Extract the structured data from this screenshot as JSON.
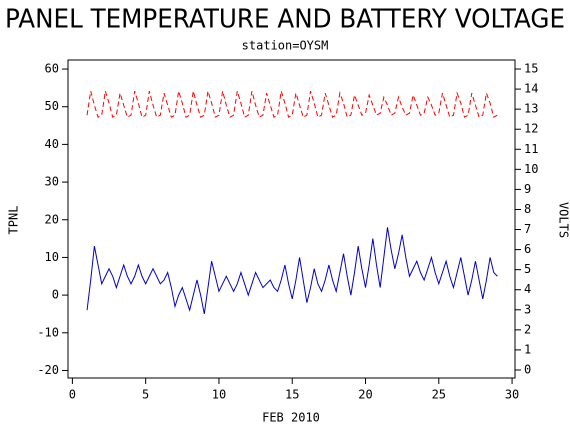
{
  "chart_data": {
    "type": "line",
    "title": "PANEL TEMPERATURE AND BATTERY VOLTAGE",
    "subtitle": "station=OYSM",
    "x_label": "FEB 2010",
    "y_label": "TPNL",
    "y2_label": "VOLTS",
    "xlim": [
      -0.3,
      30.2
    ],
    "xticks": [
      0,
      5,
      10,
      15,
      20,
      25,
      30
    ],
    "ylim": [
      -22,
      62.4
    ],
    "yticks": [
      -20,
      -10,
      0,
      10,
      20,
      30,
      40,
      50,
      60
    ],
    "y2lim": [
      -0.4,
      15.45
    ],
    "y2ticks": [
      0,
      1,
      2,
      3,
      4,
      5,
      6,
      7,
      8,
      9,
      10,
      11,
      12,
      13,
      14,
      15
    ],
    "x": [
      1,
      1.25,
      1.5,
      1.75,
      2,
      2.25,
      2.5,
      2.75,
      3,
      3.25,
      3.5,
      3.75,
      4,
      4.25,
      4.5,
      4.75,
      5,
      5.25,
      5.5,
      5.75,
      6,
      6.25,
      6.5,
      6.75,
      7,
      7.25,
      7.5,
      7.75,
      8,
      8.25,
      8.5,
      8.75,
      9,
      9.25,
      9.5,
      9.75,
      10,
      10.25,
      10.5,
      10.75,
      11,
      11.25,
      11.5,
      11.75,
      12,
      12.25,
      12.5,
      12.75,
      13,
      13.25,
      13.5,
      13.75,
      14,
      14.25,
      14.5,
      14.75,
      15,
      15.25,
      15.5,
      15.75,
      16,
      16.25,
      16.5,
      16.75,
      17,
      17.25,
      17.5,
      17.75,
      18,
      18.25,
      18.5,
      18.75,
      19,
      19.25,
      19.5,
      19.75,
      20,
      20.25,
      20.5,
      20.75,
      21,
      21.25,
      21.5,
      21.75,
      22,
      22.25,
      22.5,
      22.75,
      23,
      23.25,
      23.5,
      23.75,
      24,
      24.25,
      24.5,
      24.75,
      25,
      25.25,
      25.5,
      25.75,
      26,
      26.25,
      26.5,
      26.75,
      27,
      27.25,
      27.5,
      27.75,
      28,
      28.25,
      28.5,
      28.75,
      29
    ],
    "series": [
      {
        "color": "#0000cc",
        "linestyle": "solid",
        "values": [
          -4,
          4,
          13,
          8,
          3,
          5,
          7,
          5,
          2,
          5,
          8,
          5,
          3,
          5,
          8,
          5,
          3,
          5,
          7,
          5,
          3,
          4,
          6,
          2,
          -3,
          0,
          2,
          -1,
          -4,
          0,
          4,
          0,
          -5,
          2,
          9,
          5,
          1,
          3,
          5,
          3,
          1,
          3,
          6,
          3,
          0,
          3,
          6,
          4,
          2,
          3,
          4,
          2,
          1,
          4,
          8,
          3,
          -1,
          4,
          10,
          4,
          -2,
          2,
          7,
          3,
          1,
          4,
          8,
          4,
          1,
          6,
          11,
          5,
          0,
          6,
          13,
          7,
          2,
          8,
          15,
          8,
          2,
          10,
          18,
          12,
          7,
          11,
          16,
          10,
          5,
          7,
          9,
          6,
          4,
          7,
          10,
          6,
          3,
          6,
          9,
          5,
          2,
          6,
          10,
          5,
          0,
          4,
          9,
          4,
          -1,
          4,
          10,
          6,
          5
        ]
      },
      {
        "color": "#ff0000",
        "linestyle": "dashed",
        "axis": "y2",
        "values": [
          12.7,
          13.9,
          13.2,
          12.6,
          12.7,
          13.9,
          13.3,
          12.6,
          12.7,
          13.8,
          13.2,
          12.6,
          12.7,
          13.9,
          13.3,
          12.6,
          12.7,
          13.9,
          13.2,
          12.6,
          12.7,
          13.8,
          13.2,
          12.6,
          12.7,
          13.9,
          13.3,
          12.6,
          12.7,
          13.9,
          13.2,
          12.6,
          12.7,
          13.9,
          13.3,
          12.6,
          12.7,
          13.9,
          13.2,
          12.6,
          12.7,
          13.9,
          13.3,
          12.6,
          12.7,
          13.9,
          13.2,
          12.6,
          12.7,
          13.8,
          13.2,
          12.6,
          12.7,
          13.9,
          13.3,
          12.6,
          12.7,
          13.8,
          13.2,
          12.6,
          12.7,
          13.9,
          13.3,
          12.6,
          12.7,
          13.8,
          13.2,
          12.6,
          12.7,
          13.8,
          13.3,
          12.6,
          12.7,
          13.7,
          13.2,
          12.7,
          12.8,
          13.7,
          13.2,
          12.7,
          12.8,
          13.6,
          13.2,
          12.7,
          12.8,
          13.6,
          13.1,
          12.7,
          12.8,
          13.7,
          13.2,
          12.7,
          12.8,
          13.6,
          13.2,
          12.7,
          12.8,
          13.8,
          13.2,
          12.6,
          12.7,
          13.8,
          13.3,
          12.6,
          12.7,
          13.8,
          13.2,
          12.6,
          12.7,
          13.8,
          13.3,
          12.6,
          12.7
        ]
      }
    ]
  }
}
